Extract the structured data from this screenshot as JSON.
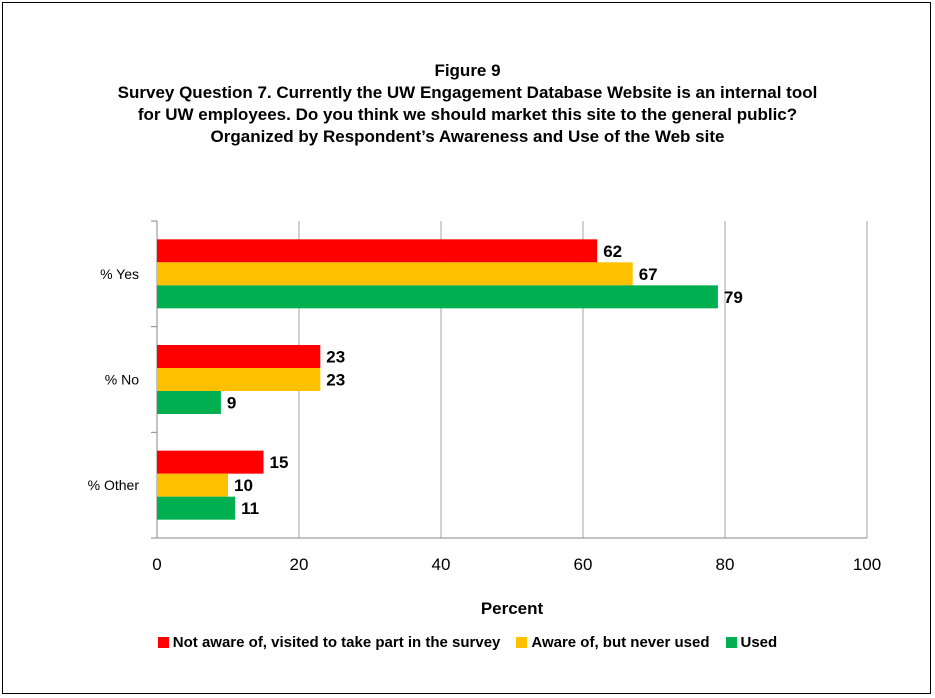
{
  "chart_data": {
    "type": "bar",
    "orientation": "horizontal",
    "title_lines": [
      "Figure 9",
      "Survey Question 7. Currently the UW Engagement Database Website is an internal tool",
      "for UW employees. Do you think we should market this site to the general public?",
      "Organized by Respondent’s Awareness and Use of the Web site"
    ],
    "categories": [
      "% Yes",
      "% No",
      "% Other"
    ],
    "series": [
      {
        "name": "Not aware of, visited to take part in the survey",
        "color": "#ff0000",
        "values": [
          62,
          23,
          15
        ]
      },
      {
        "name": "Aware of, but never used",
        "color": "#ffc000",
        "values": [
          67,
          23,
          10
        ]
      },
      {
        "name": "Used",
        "color": "#00b050",
        "values": [
          79,
          9,
          11
        ]
      }
    ],
    "xlabel": "Percent",
    "ylabel": "",
    "xlim": [
      0,
      100
    ],
    "xticks": [
      0,
      20,
      40,
      60,
      80,
      100
    ],
    "grid": true,
    "legend_position": "bottom",
    "data_labels": true
  }
}
